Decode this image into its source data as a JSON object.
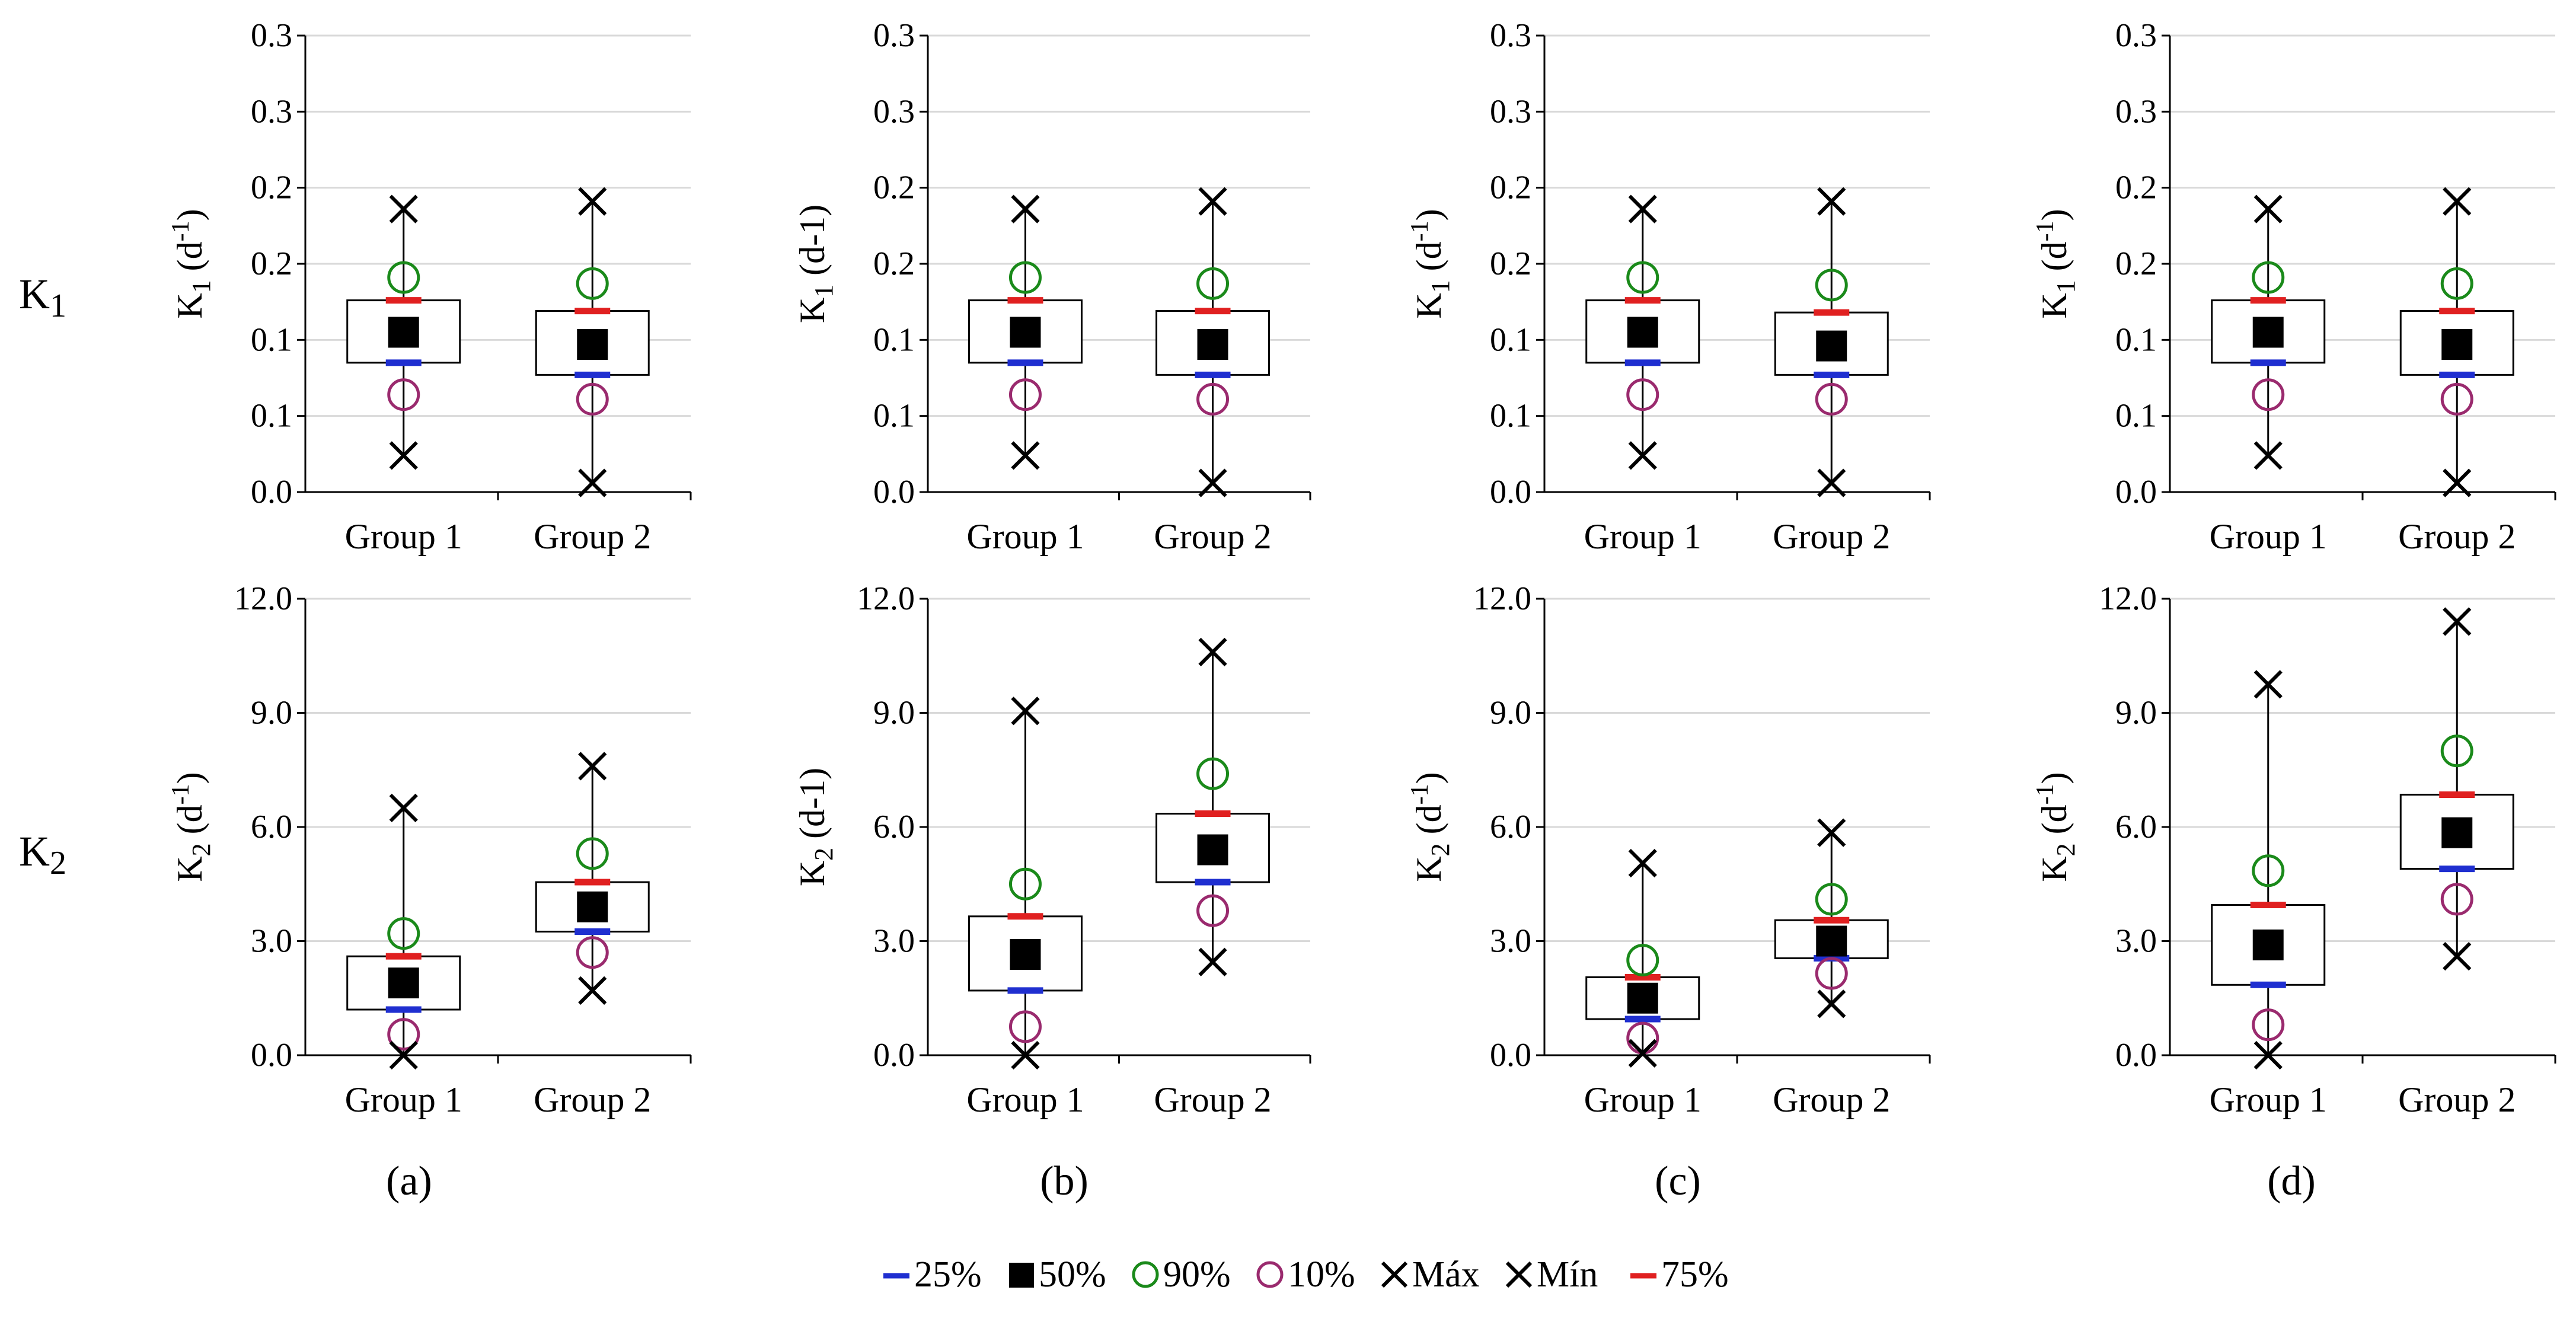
{
  "row_labels": [
    {
      "main": "K",
      "sub": "1"
    },
    {
      "main": "K",
      "sub": "2"
    }
  ],
  "panel_labels": [
    "(a)",
    "(b)",
    "(c)",
    "(d)"
  ],
  "legend": [
    {
      "symbol": "dash",
      "color": "#1f2fd0",
      "label": "25%"
    },
    {
      "symbol": "square",
      "color": "#000000",
      "label": "50%"
    },
    {
      "symbol": "circle",
      "color": "#1a8a1a",
      "label": "90%"
    },
    {
      "symbol": "circle",
      "color": "#9a2a6e",
      "label": "10%"
    },
    {
      "symbol": "cross",
      "color": "#000000",
      "label": "Máx"
    },
    {
      "symbol": "cross",
      "color": "#000000",
      "label": "Mín"
    },
    {
      "symbol": "dash",
      "color": "#e02020",
      "label": "75%"
    }
  ],
  "colors": {
    "p25": "#1f2fd0",
    "p75": "#e02020",
    "p90": "#1a8a1a",
    "p10": "#9a2a6e",
    "median": "#000000",
    "extreme": "#000000",
    "grid": "#d9d9d9",
    "axis": "#000000"
  },
  "chart_data": [
    {
      "type": "box",
      "panel": "a",
      "row": "K1",
      "ylabel": "K",
      "ylabel_sub": "1",
      "ylabel_unit": " (d",
      "ylabel_sup": "-1",
      "ylabel_end": ")",
      "yticks": [
        0,
        0.05,
        0.1,
        0.15,
        0.2,
        0.25,
        0.3
      ],
      "ytick_labels": [
        "0.0",
        "0.1",
        "0.1",
        "0.2",
        "0.2",
        "0.3",
        "0.3"
      ],
      "ylim": [
        0,
        0.3
      ],
      "categories": [
        "Group 1",
        "Group 2"
      ],
      "groups": [
        {
          "min": 0.024,
          "p10": 0.064,
          "p25": 0.085,
          "median": 0.105,
          "p75": 0.126,
          "p90": 0.141,
          "max": 0.186
        },
        {
          "min": 0.006,
          "p10": 0.061,
          "p25": 0.077,
          "median": 0.097,
          "p75": 0.119,
          "p90": 0.137,
          "max": 0.191
        }
      ]
    },
    {
      "type": "box",
      "panel": "b",
      "row": "K1",
      "ylabel": "K",
      "ylabel_sub": "1",
      "ylabel_unit": " (d-1)",
      "ylabel_sup": "",
      "ylabel_end": "",
      "yticks": [
        0,
        0.05,
        0.1,
        0.15,
        0.2,
        0.25,
        0.3
      ],
      "ytick_labels": [
        "0.0",
        "0.1",
        "0.1",
        "0.2",
        "0.2",
        "0.3",
        "0.3"
      ],
      "ylim": [
        0,
        0.3
      ],
      "categories": [
        "Group 1",
        "Group 2"
      ],
      "groups": [
        {
          "min": 0.024,
          "p10": 0.064,
          "p25": 0.085,
          "median": 0.105,
          "p75": 0.126,
          "p90": 0.141,
          "max": 0.186
        },
        {
          "min": 0.006,
          "p10": 0.061,
          "p25": 0.077,
          "median": 0.097,
          "p75": 0.119,
          "p90": 0.137,
          "max": 0.191
        }
      ]
    },
    {
      "type": "box",
      "panel": "c",
      "row": "K1",
      "ylabel": "K",
      "ylabel_sub": "1",
      "ylabel_unit": " (d",
      "ylabel_sup": "-1",
      "ylabel_end": ")",
      "yticks": [
        0,
        0.05,
        0.1,
        0.15,
        0.2,
        0.25,
        0.3
      ],
      "ytick_labels": [
        "0.0",
        "0.1",
        "0.1",
        "0.2",
        "0.2",
        "0.3",
        "0.3"
      ],
      "ylim": [
        0,
        0.3
      ],
      "categories": [
        "Group 1",
        "Group 2"
      ],
      "groups": [
        {
          "min": 0.024,
          "p10": 0.064,
          "p25": 0.085,
          "median": 0.105,
          "p75": 0.126,
          "p90": 0.141,
          "max": 0.186
        },
        {
          "min": 0.006,
          "p10": 0.061,
          "p25": 0.077,
          "median": 0.096,
          "p75": 0.118,
          "p90": 0.136,
          "max": 0.191
        }
      ]
    },
    {
      "type": "box",
      "panel": "d",
      "row": "K1",
      "ylabel": "K",
      "ylabel_sub": "1",
      "ylabel_unit": " (d",
      "ylabel_sup": "-1",
      "ylabel_end": ")",
      "yticks": [
        0,
        0.05,
        0.1,
        0.15,
        0.2,
        0.25,
        0.3
      ],
      "ytick_labels": [
        "0.0",
        "0.1",
        "0.1",
        "0.2",
        "0.2",
        "0.3",
        "0.3"
      ],
      "ylim": [
        0,
        0.3
      ],
      "categories": [
        "Group 1",
        "Group 2"
      ],
      "groups": [
        {
          "min": 0.024,
          "p10": 0.064,
          "p25": 0.085,
          "median": 0.105,
          "p75": 0.126,
          "p90": 0.141,
          "max": 0.186
        },
        {
          "min": 0.006,
          "p10": 0.061,
          "p25": 0.077,
          "median": 0.097,
          "p75": 0.119,
          "p90": 0.137,
          "max": 0.191
        }
      ]
    },
    {
      "type": "box",
      "panel": "a",
      "row": "K2",
      "ylabel": "K",
      "ylabel_sub": "2",
      "ylabel_unit": " (d",
      "ylabel_sup": "-1",
      "ylabel_end": ")",
      "yticks": [
        0,
        3,
        6,
        9,
        12
      ],
      "ytick_labels": [
        "0.0",
        "3.0",
        "6.0",
        "9.0",
        "12.0"
      ],
      "ylim": [
        0,
        12
      ],
      "categories": [
        "Group 1",
        "Group 2"
      ],
      "groups": [
        {
          "min": 0.0,
          "p10": 0.55,
          "p25": 1.2,
          "median": 1.9,
          "p75": 2.6,
          "p90": 3.2,
          "max": 6.5
        },
        {
          "min": 1.7,
          "p10": 2.7,
          "p25": 3.25,
          "median": 3.9,
          "p75": 4.55,
          "p90": 5.3,
          "max": 7.6
        }
      ]
    },
    {
      "type": "box",
      "panel": "b",
      "row": "K2",
      "ylabel": "K",
      "ylabel_sub": "2",
      "ylabel_unit": " (d-1)",
      "ylabel_sup": "",
      "ylabel_end": "",
      "yticks": [
        0,
        3,
        6,
        9,
        12
      ],
      "ytick_labels": [
        "0.0",
        "3.0",
        "6.0",
        "9.0",
        "12.0"
      ],
      "ylim": [
        0,
        12
      ],
      "categories": [
        "Group 1",
        "Group 2"
      ],
      "groups": [
        {
          "min": 0.0,
          "p10": 0.75,
          "p25": 1.7,
          "median": 2.65,
          "p75": 3.65,
          "p90": 4.5,
          "max": 9.05
        },
        {
          "min": 2.45,
          "p10": 3.8,
          "p25": 4.55,
          "median": 5.4,
          "p75": 6.35,
          "p90": 7.4,
          "max": 10.6
        }
      ]
    },
    {
      "type": "box",
      "panel": "c",
      "row": "K2",
      "ylabel": "K",
      "ylabel_sub": "2",
      "ylabel_unit": " (d",
      "ylabel_sup": "-1",
      "ylabel_end": ")",
      "yticks": [
        0,
        3,
        6,
        9,
        12
      ],
      "ytick_labels": [
        "0.0",
        "3.0",
        "6.0",
        "9.0",
        "12.0"
      ],
      "ylim": [
        0,
        12
      ],
      "categories": [
        "Group 1",
        "Group 2"
      ],
      "groups": [
        {
          "min": 0.05,
          "p10": 0.45,
          "p25": 0.95,
          "median": 1.5,
          "p75": 2.05,
          "p90": 2.5,
          "max": 5.05
        },
        {
          "min": 1.35,
          "p10": 2.15,
          "p25": 2.55,
          "median": 3.0,
          "p75": 3.55,
          "p90": 4.1,
          "max": 5.85
        }
      ]
    },
    {
      "type": "box",
      "panel": "d",
      "row": "K2",
      "ylabel": "K",
      "ylabel_sub": "2",
      "ylabel_unit": " (d",
      "ylabel_sup": "-1",
      "ylabel_end": ")",
      "yticks": [
        0,
        3,
        6,
        9,
        12
      ],
      "ytick_labels": [
        "0.0",
        "3.0",
        "6.0",
        "9.0",
        "12.0"
      ],
      "ylim": [
        0,
        12
      ],
      "categories": [
        "Group 1",
        "Group 2"
      ],
      "groups": [
        {
          "min": 0.0,
          "p10": 0.8,
          "p25": 1.85,
          "median": 2.9,
          "p75": 3.95,
          "p90": 4.85,
          "max": 9.75
        },
        {
          "min": 2.6,
          "p10": 4.1,
          "p25": 4.9,
          "median": 5.85,
          "p75": 6.85,
          "p90": 8.0,
          "max": 11.4
        }
      ]
    }
  ]
}
